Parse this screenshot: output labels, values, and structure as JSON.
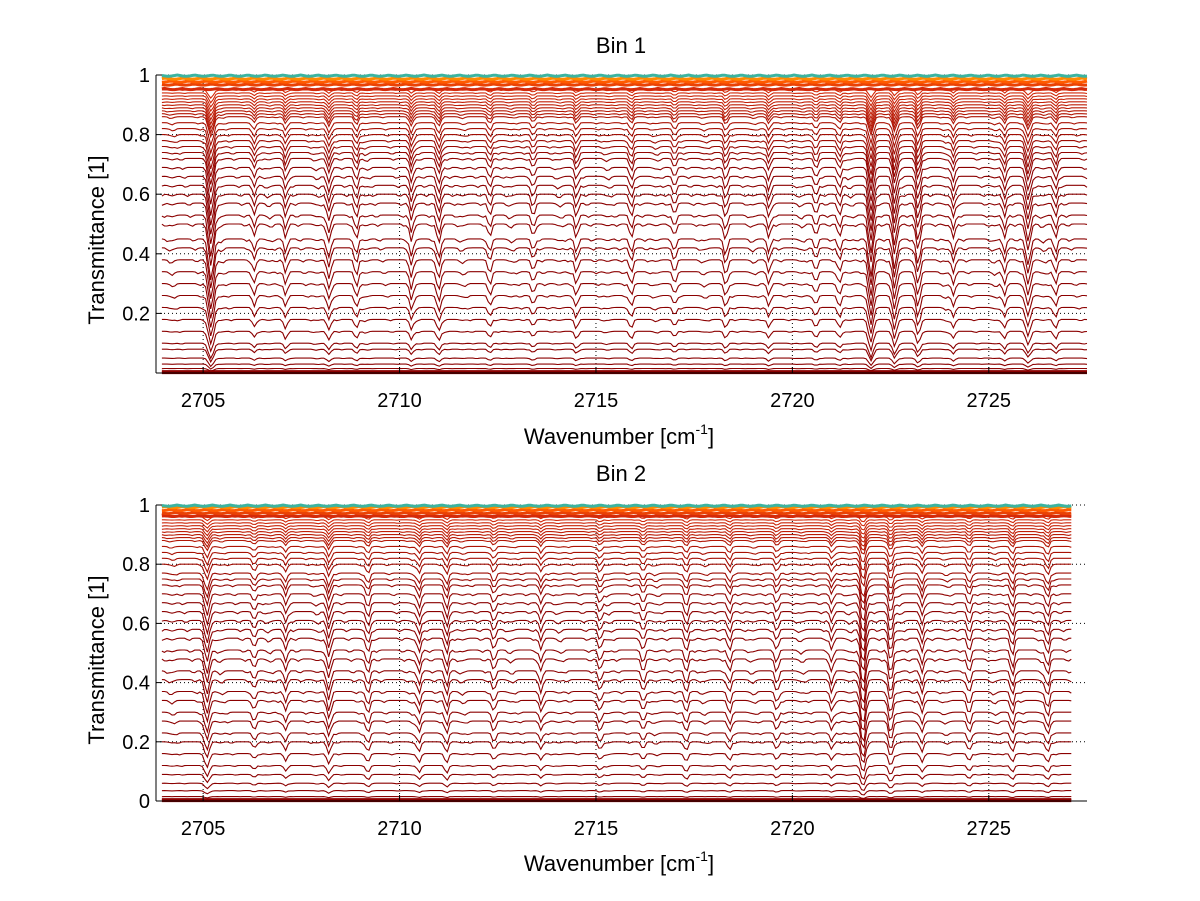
{
  "chart_data": [
    {
      "type": "line",
      "title": "Bin 1",
      "xlabel": "Wavenumber [cm",
      "xlabel_sup": "-1",
      "xlabel_end": "]",
      "ylabel": "Transmittance [1]",
      "xlim": [
        2703.8,
        2727.5
      ],
      "ylim": [
        0,
        1
      ],
      "xticks": [
        2705,
        2710,
        2715,
        2720,
        2725
      ],
      "xtick_labels": [
        "2705",
        "2710",
        "2715",
        "2720",
        "2725"
      ],
      "yticks": [
        0.2,
        0.4,
        0.6,
        0.8,
        1
      ],
      "ytick_labels": [
        "0.2",
        "0.4",
        "0.6",
        "0.8",
        "1"
      ],
      "grid": "dotted",
      "x_end": 2727.5,
      "baselines": [
        0.005,
        0.015,
        0.03,
        0.05,
        0.08,
        0.1,
        0.14,
        0.18,
        0.22,
        0.26,
        0.3,
        0.34,
        0.38,
        0.42,
        0.45,
        0.5,
        0.53,
        0.57,
        0.6,
        0.63,
        0.66,
        0.69,
        0.72,
        0.74,
        0.76,
        0.78,
        0.8,
        0.82,
        0.84,
        0.86,
        0.87,
        0.88,
        0.89,
        0.9,
        0.91,
        0.92,
        0.93,
        0.94,
        0.95
      ],
      "saturated_band": [
        0.955,
        0.97,
        0.98,
        0.99,
        1.0
      ],
      "absorption_lines": [
        {
          "x": 2705.2,
          "depth": 0.35,
          "width": 0.09
        },
        {
          "x": 2706.3,
          "depth": 0.1,
          "width": 0.06
        },
        {
          "x": 2707.1,
          "depth": 0.12,
          "width": 0.06
        },
        {
          "x": 2708.2,
          "depth": 0.15,
          "width": 0.07
        },
        {
          "x": 2708.9,
          "depth": 0.13,
          "width": 0.06
        },
        {
          "x": 2710.3,
          "depth": 0.14,
          "width": 0.06
        },
        {
          "x": 2711.0,
          "depth": 0.16,
          "width": 0.07
        },
        {
          "x": 2712.3,
          "depth": 0.11,
          "width": 0.06
        },
        {
          "x": 2713.4,
          "depth": 0.1,
          "width": 0.06
        },
        {
          "x": 2714.5,
          "depth": 0.12,
          "width": 0.06
        },
        {
          "x": 2715.9,
          "depth": 0.12,
          "width": 0.06
        },
        {
          "x": 2717.0,
          "depth": 0.1,
          "width": 0.06
        },
        {
          "x": 2718.3,
          "depth": 0.13,
          "width": 0.06
        },
        {
          "x": 2719.4,
          "depth": 0.12,
          "width": 0.06
        },
        {
          "x": 2720.6,
          "depth": 0.1,
          "width": 0.06
        },
        {
          "x": 2721.2,
          "depth": 0.11,
          "width": 0.06
        },
        {
          "x": 2722.0,
          "depth": 0.32,
          "width": 0.08
        },
        {
          "x": 2722.6,
          "depth": 0.25,
          "width": 0.07
        },
        {
          "x": 2723.2,
          "depth": 0.22,
          "width": 0.07
        },
        {
          "x": 2724.1,
          "depth": 0.12,
          "width": 0.06
        },
        {
          "x": 2725.4,
          "depth": 0.12,
          "width": 0.06
        },
        {
          "x": 2726.0,
          "depth": 0.22,
          "width": 0.08
        },
        {
          "x": 2726.7,
          "depth": 0.12,
          "width": 0.06
        }
      ],
      "colors": {
        "low": "#8b0000",
        "mid": "#d42a0a",
        "high": "#ff5a00",
        "top": "#ffa500",
        "edge": "#3cb4a0"
      }
    },
    {
      "type": "line",
      "title": "Bin 2",
      "xlabel": "Wavenumber [cm",
      "xlabel_sup": "-1",
      "xlabel_end": "]",
      "ylabel": "Transmittance [1]",
      "xlim": [
        2703.8,
        2727.5
      ],
      "ylim": [
        0,
        1
      ],
      "xticks": [
        2705,
        2710,
        2715,
        2720,
        2725
      ],
      "xtick_labels": [
        "2705",
        "2710",
        "2715",
        "2720",
        "2725"
      ],
      "yticks": [
        0,
        0.2,
        0.4,
        0.6,
        0.8,
        1
      ],
      "ytick_labels": [
        "0",
        "0.2",
        "0.4",
        "0.6",
        "0.8",
        "1"
      ],
      "grid": "dotted",
      "x_end": 2727.1,
      "baselines": [
        0.005,
        0.015,
        0.035,
        0.06,
        0.09,
        0.12,
        0.16,
        0.2,
        0.23,
        0.27,
        0.3,
        0.34,
        0.37,
        0.41,
        0.44,
        0.48,
        0.51,
        0.55,
        0.58,
        0.61,
        0.64,
        0.67,
        0.7,
        0.73,
        0.75,
        0.77,
        0.8,
        0.82,
        0.84,
        0.86,
        0.88,
        0.89,
        0.9,
        0.91,
        0.92,
        0.93,
        0.94,
        0.95,
        0.96
      ],
      "saturated_band": [
        0.965,
        0.975,
        0.985,
        0.995,
        1.0
      ],
      "absorption_lines": [
        {
          "x": 2705.1,
          "depth": 0.2,
          "width": 0.08
        },
        {
          "x": 2706.3,
          "depth": 0.08,
          "width": 0.06
        },
        {
          "x": 2707.1,
          "depth": 0.1,
          "width": 0.06
        },
        {
          "x": 2708.2,
          "depth": 0.16,
          "width": 0.07
        },
        {
          "x": 2709.2,
          "depth": 0.12,
          "width": 0.06
        },
        {
          "x": 2710.5,
          "depth": 0.12,
          "width": 0.06
        },
        {
          "x": 2711.2,
          "depth": 0.14,
          "width": 0.06
        },
        {
          "x": 2712.4,
          "depth": 0.1,
          "width": 0.06
        },
        {
          "x": 2713.6,
          "depth": 0.1,
          "width": 0.06
        },
        {
          "x": 2715.1,
          "depth": 0.1,
          "width": 0.06
        },
        {
          "x": 2716.2,
          "depth": 0.1,
          "width": 0.06
        },
        {
          "x": 2717.3,
          "depth": 0.12,
          "width": 0.06
        },
        {
          "x": 2718.4,
          "depth": 0.11,
          "width": 0.06
        },
        {
          "x": 2719.6,
          "depth": 0.1,
          "width": 0.06
        },
        {
          "x": 2721.0,
          "depth": 0.1,
          "width": 0.06
        },
        {
          "x": 2721.8,
          "depth": 0.3,
          "width": 0.08
        },
        {
          "x": 2722.5,
          "depth": 0.2,
          "width": 0.07
        },
        {
          "x": 2723.3,
          "depth": 0.12,
          "width": 0.06
        },
        {
          "x": 2724.5,
          "depth": 0.12,
          "width": 0.06
        },
        {
          "x": 2725.6,
          "depth": 0.14,
          "width": 0.06
        },
        {
          "x": 2726.5,
          "depth": 0.14,
          "width": 0.06
        }
      ],
      "colors": {
        "low": "#8b0000",
        "mid": "#d42a0a",
        "high": "#ff5a00",
        "top": "#ffa500",
        "edge": "#3cb4a0"
      }
    }
  ]
}
